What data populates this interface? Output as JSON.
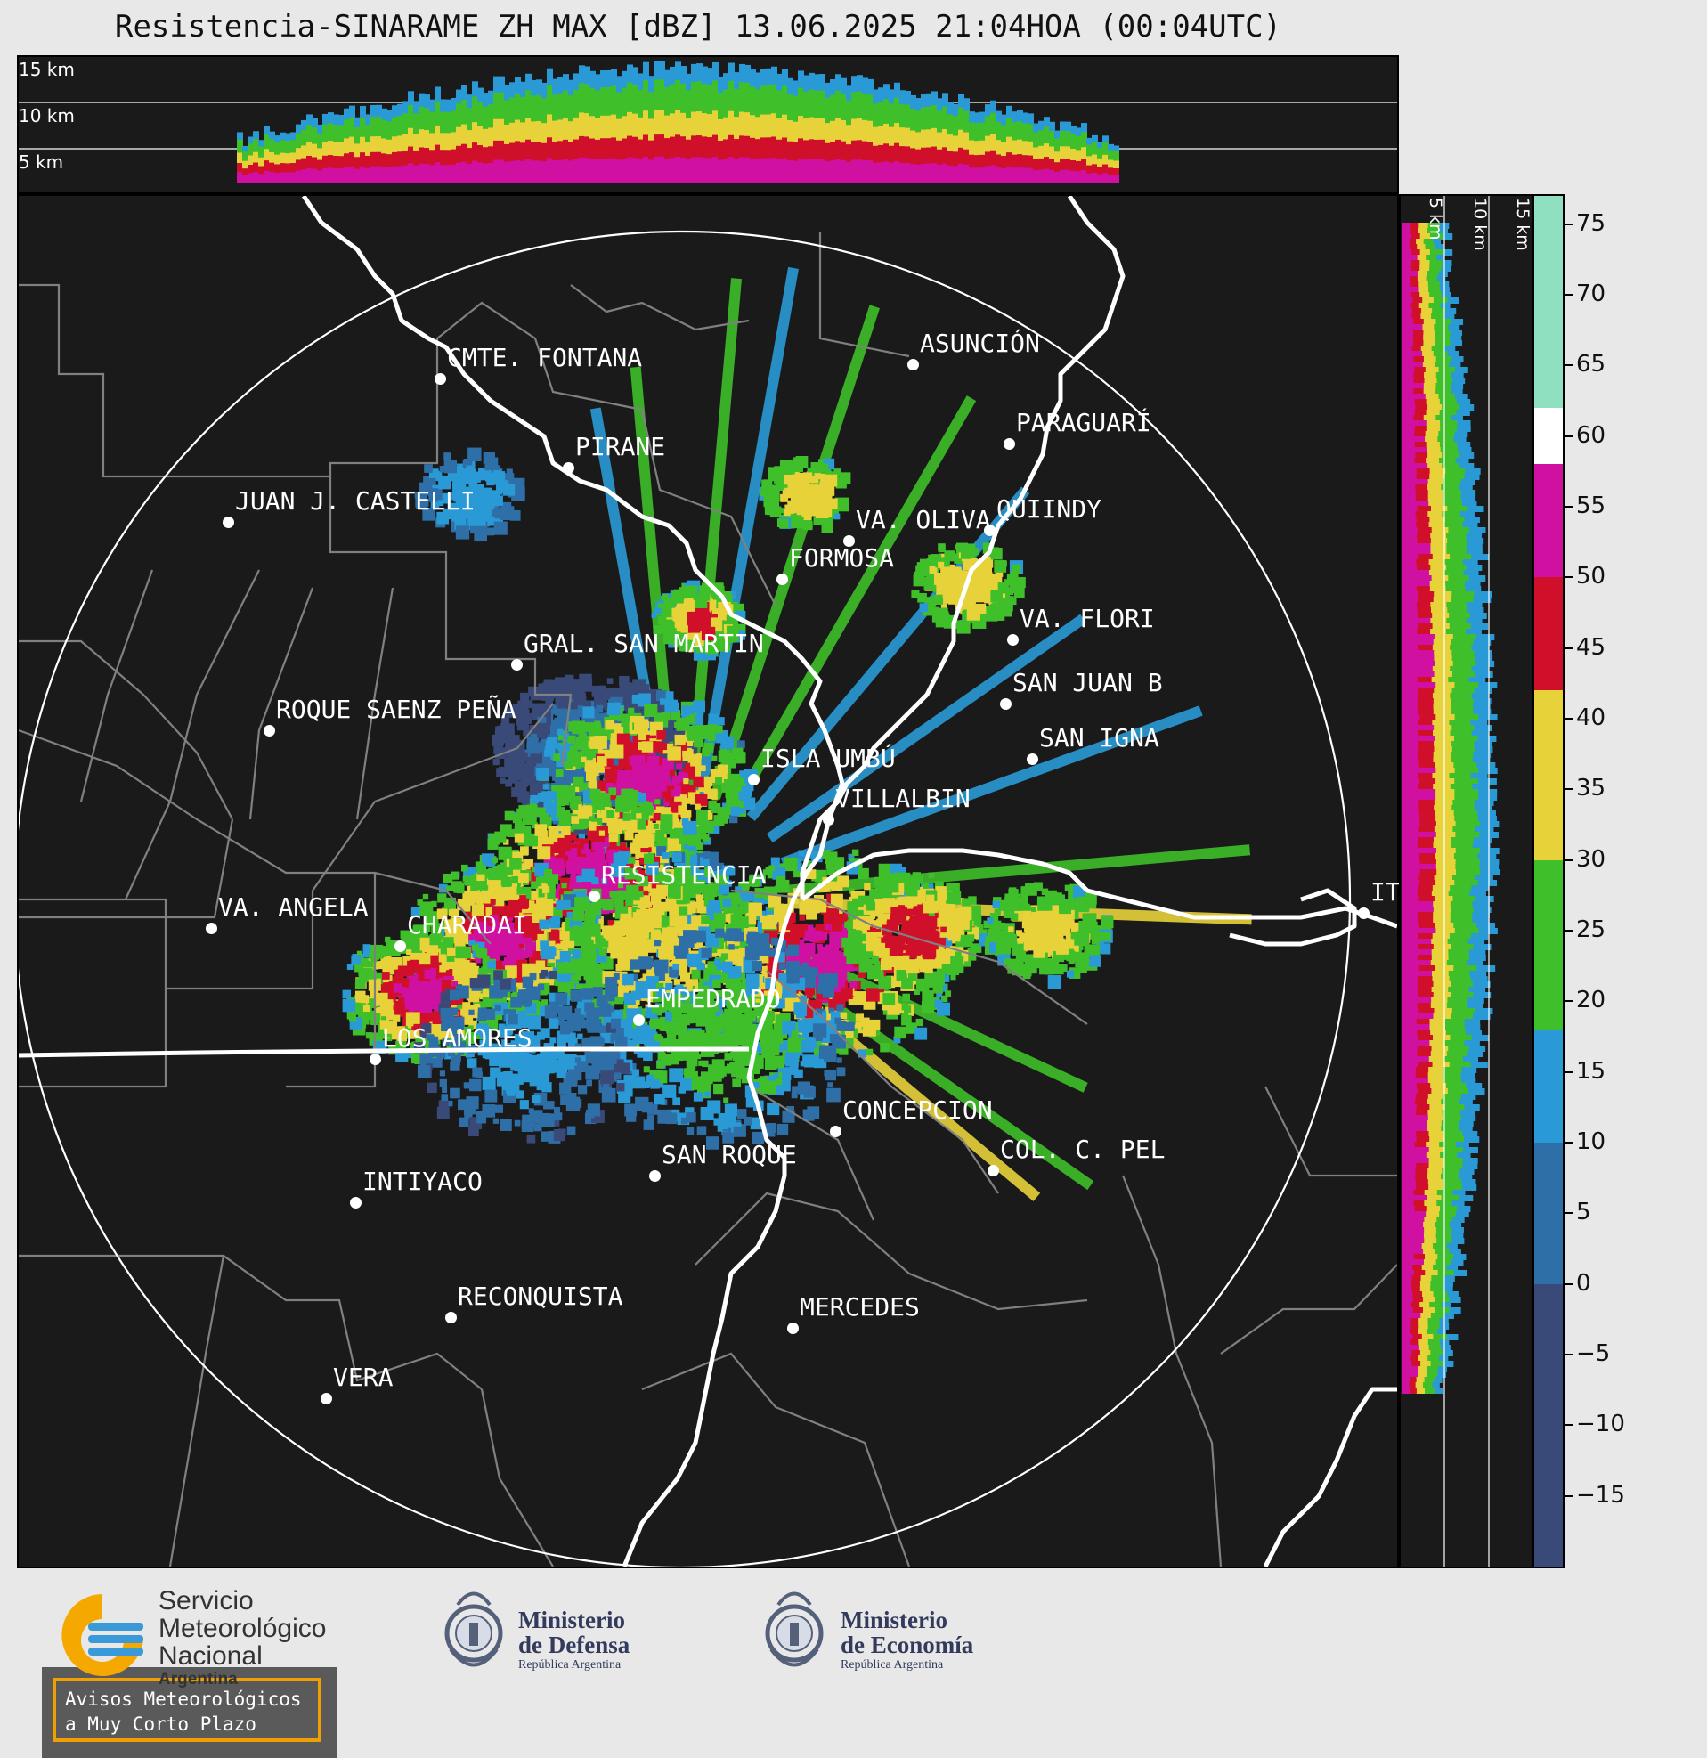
{
  "title": "Resistencia-SINARAME ZH MAX [dBZ] 13.06.2025 21:04HOA (00:04UTC)",
  "top_panel": {
    "height_labels": [
      "15 km",
      "10 km",
      "5 km"
    ]
  },
  "side_panel": {
    "height_labels": [
      "5 km",
      "10 km",
      "15 km"
    ]
  },
  "colorbar": {
    "unit": "dBZ",
    "tick_labels": [
      "75",
      "70",
      "65",
      "60",
      "55",
      "50",
      "45",
      "40",
      "35",
      "30",
      "25",
      "20",
      "15",
      "10",
      "5",
      "0",
      "−5",
      "−10",
      "−15"
    ],
    "tick_values": [
      75,
      70,
      65,
      60,
      55,
      50,
      45,
      40,
      35,
      30,
      25,
      20,
      15,
      10,
      5,
      0,
      -5,
      -10,
      -15
    ],
    "range": [
      -20,
      77
    ],
    "bands": [
      {
        "from": -20,
        "to": 0,
        "color": "#3a4a78"
      },
      {
        "from": 0,
        "to": 10,
        "color": "#2f6fa8"
      },
      {
        "from": 10,
        "to": 18,
        "color": "#2a9ad6"
      },
      {
        "from": 18,
        "to": 30,
        "color": "#3fbf2a"
      },
      {
        "from": 30,
        "to": 42,
        "color": "#e8d23a"
      },
      {
        "from": 42,
        "to": 50,
        "color": "#d0102a"
      },
      {
        "from": 50,
        "to": 58,
        "color": "#d010a0"
      },
      {
        "from": 58,
        "to": 62,
        "color": "#ffffff"
      },
      {
        "from": 62,
        "to": 77,
        "color": "#8ee0c0"
      }
    ]
  },
  "cities": [
    {
      "name": "CMTE. FONTANA",
      "label": "CMTE. FONTANA"
    },
    {
      "name": "ASUNCION",
      "label": "ASUNCIÓN"
    },
    {
      "name": "PIRANE",
      "label": "PIRANE"
    },
    {
      "name": "PARAGUARI",
      "label": "PARAGUARÍ"
    },
    {
      "name": "JUAN J. CASTELLI",
      "label": "JUAN J. CASTELLI"
    },
    {
      "name": "VA. OLIVA",
      "label": "VA. OLIVA"
    },
    {
      "name": "QUIINDY",
      "label": "QUIINDY"
    },
    {
      "name": "FORMOSA",
      "label": "FORMOSA"
    },
    {
      "name": "VA. FLORIDA",
      "label": "VA. FLORI"
    },
    {
      "name": "GRAL. SAN MARTIN",
      "label": "GRAL. SAN MARTIN"
    },
    {
      "name": "SAN JUAN B",
      "label": "SAN JUAN B"
    },
    {
      "name": "ROQUE SAENZ PENA",
      "label": "ROQUE SAENZ PEÑA"
    },
    {
      "name": "SAN IGNACIO",
      "label": "SAN IGNA"
    },
    {
      "name": "ISLA UMBU",
      "label": "ISLA UMBÚ"
    },
    {
      "name": "VILLALBIN",
      "label": "VILLALBIN"
    },
    {
      "name": "RESISTENCIA",
      "label": "RESISTENCIA"
    },
    {
      "name": "VA. ANGELA",
      "label": "VA. ANGELA"
    },
    {
      "name": "CHARADAI",
      "label": "CHARADAI"
    },
    {
      "name": "ITUZAINGO",
      "label": "IT"
    },
    {
      "name": "EMPEDRADO",
      "label": "EMPEDRADO"
    },
    {
      "name": "LOS AMORES",
      "label": "LOS AMORES"
    },
    {
      "name": "CONCEPCION",
      "label": "CONCEPCION"
    },
    {
      "name": "SAN ROQUE",
      "label": "SAN ROQUE"
    },
    {
      "name": "COL. C. PELLEGRINI",
      "label": "COL. C. PEL"
    },
    {
      "name": "INTIYACO",
      "label": "INTIYACO"
    },
    {
      "name": "RECONQUISTA",
      "label": "RECONQUISTA"
    },
    {
      "name": "MERCEDES",
      "label": "MERCEDES"
    },
    {
      "name": "VERA",
      "label": "VERA"
    }
  ],
  "aviso": {
    "line1": "Avisos Meteorológicos",
    "line2": "a Muy Corto Plazo"
  },
  "logos": {
    "smn": {
      "line1": "Servicio",
      "line2": "Meteorológico",
      "line3": "Nacional",
      "line4": "Argentina",
      "color_a": "#f5a800",
      "color_b": "#3a9ad9"
    },
    "defensa": {
      "line1": "Ministerio",
      "line2": "de Defensa",
      "line3": "República Argentina"
    },
    "economia": {
      "line1": "Ministerio",
      "line2": "de Economía",
      "line3": "República Argentina"
    }
  }
}
